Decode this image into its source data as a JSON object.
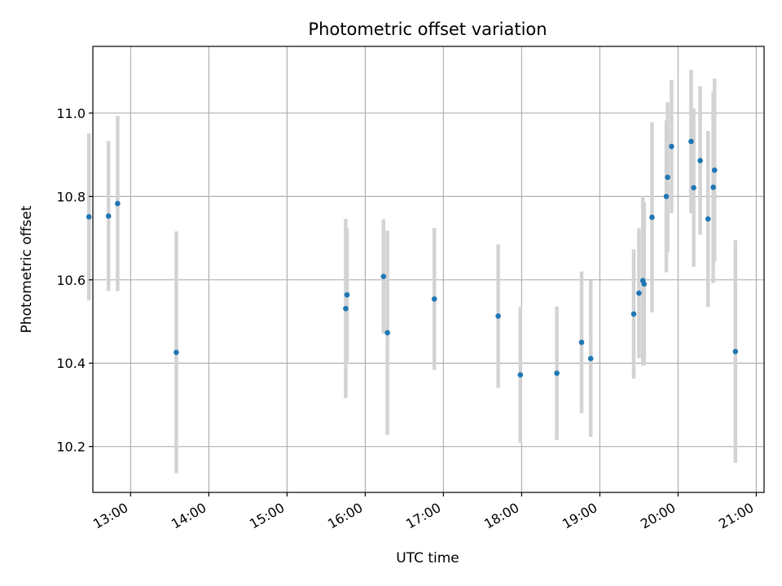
{
  "chart_data": {
    "type": "scatter",
    "title": "Photometric offset variation",
    "xlabel": "UTC time",
    "ylabel": "Photometric offset",
    "x_ticks": [
      "13:00",
      "14:00",
      "15:00",
      "16:00",
      "17:00",
      "18:00",
      "19:00",
      "20:00",
      "21:00"
    ],
    "y_ticks": [
      "10.2",
      "10.4",
      "10.6",
      "10.8",
      "11.0"
    ],
    "xlim": [
      "12:31",
      "21:06"
    ],
    "ylim": [
      10.09,
      11.16
    ],
    "grid": true,
    "marker_color": "#1f77b4",
    "errorbar_color": "#d3d3d3",
    "points": [
      {
        "t": "12:28",
        "y": 10.751,
        "err": 0.2
      },
      {
        "t": "12:43",
        "y": 10.753,
        "err": 0.18
      },
      {
        "t": "12:50",
        "y": 10.783,
        "err": 0.21
      },
      {
        "t": "13:35",
        "y": 10.426,
        "err": 0.29
      },
      {
        "t": "15:45",
        "y": 10.531,
        "err": 0.215
      },
      {
        "t": "15:46",
        "y": 10.564,
        "err": 0.16
      },
      {
        "t": "16:14",
        "y": 10.608,
        "err": 0.137
      },
      {
        "t": "16:17",
        "y": 10.473,
        "err": 0.245
      },
      {
        "t": "16:53",
        "y": 10.554,
        "err": 0.17
      },
      {
        "t": "17:42",
        "y": 10.513,
        "err": 0.172
      },
      {
        "t": "17:59",
        "y": 10.372,
        "err": 0.163
      },
      {
        "t": "18:27",
        "y": 10.376,
        "err": 0.16
      },
      {
        "t": "18:46",
        "y": 10.45,
        "err": 0.17
      },
      {
        "t": "18:53",
        "y": 10.411,
        "err": 0.188
      },
      {
        "t": "19:26",
        "y": 10.518,
        "err": 0.155
      },
      {
        "t": "19:30",
        "y": 10.568,
        "err": 0.156
      },
      {
        "t": "19:33",
        "y": 10.598,
        "err": 0.204
      },
      {
        "t": "19:34",
        "y": 10.59,
        "err": 0.195
      },
      {
        "t": "19:40",
        "y": 10.75,
        "err": 0.228
      },
      {
        "t": "19:51",
        "y": 10.8,
        "err": 0.182
      },
      {
        "t": "19:52",
        "y": 10.846,
        "err": 0.18
      },
      {
        "t": "19:55",
        "y": 10.92,
        "err": 0.16
      },
      {
        "t": "20:10",
        "y": 10.932,
        "err": 0.172
      },
      {
        "t": "20:12",
        "y": 10.821,
        "err": 0.19
      },
      {
        "t": "20:17",
        "y": 10.886,
        "err": 0.178
      },
      {
        "t": "20:23",
        "y": 10.746,
        "err": 0.211
      },
      {
        "t": "20:27",
        "y": 10.822,
        "err": 0.23
      },
      {
        "t": "20:28",
        "y": 10.863,
        "err": 0.22
      },
      {
        "t": "20:44",
        "y": 10.428,
        "err": 0.267
      }
    ]
  }
}
